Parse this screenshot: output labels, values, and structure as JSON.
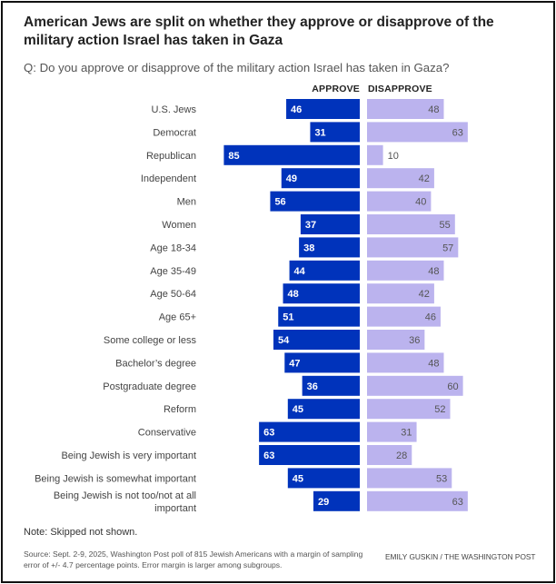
{
  "header": {
    "title": "American Jews are split on whether they approve or disapprove of the military action Israel has taken in Gaza",
    "subtitle": "Q: Do you approve or disapprove of the military action Israel has taken in Gaza?"
  },
  "colors": {
    "approve": "#0033bb",
    "disapprove": "#bbb3ee",
    "approve_label": "#ffffff",
    "disapprove_label": "#555555"
  },
  "chart_data": {
    "type": "bar",
    "orientation": "horizontal-diverging",
    "title": "American Jews are split on whether they approve or disapprove of the military action Israel has taken in Gaza",
    "subtitle": "Q: Do you approve or disapprove of the military action Israel has taken in Gaza?",
    "categories": [
      [
        "U.S. Jews"
      ],
      [
        "Democrat"
      ],
      [
        "Republican"
      ],
      [
        "Independent"
      ],
      [
        "Men"
      ],
      [
        "Women"
      ],
      [
        "Age 18-34"
      ],
      [
        "Age 35-49"
      ],
      [
        "Age 50-64"
      ],
      [
        "Age 65+"
      ],
      [
        "Some college or less"
      ],
      [
        "Bachelor’s degree"
      ],
      [
        "Postgraduate degree"
      ],
      [
        "Reform"
      ],
      [
        "Conservative"
      ],
      [
        "Being Jewish is very important"
      ],
      [
        "Being Jewish is somewhat important"
      ],
      [
        "Being Jewish is not too/not at all",
        "important"
      ]
    ],
    "series": [
      {
        "name": "APPROVE",
        "values": [
          46,
          31,
          85,
          49,
          56,
          37,
          38,
          44,
          48,
          51,
          54,
          47,
          36,
          45,
          63,
          63,
          45,
          29
        ]
      },
      {
        "name": "DISAPPROVE",
        "values": [
          48,
          63,
          10,
          42,
          40,
          55,
          57,
          48,
          42,
          46,
          36,
          48,
          60,
          52,
          31,
          28,
          53,
          63
        ]
      }
    ],
    "unit": "percent",
    "xlim": [
      0,
      100
    ],
    "grid": false,
    "legend": "top-column-headers"
  },
  "footer": {
    "note": "Note: Skipped not shown.",
    "source": "Source: Sept. 2-9, 2025, Washington Post poll of 815 Jewish Americans with a margin of sampling error of +/- 4.7 percentage points. Error margin is larger among subgroups.",
    "credit": "EMILY GUSKIN / THE WASHINGTON POST"
  }
}
